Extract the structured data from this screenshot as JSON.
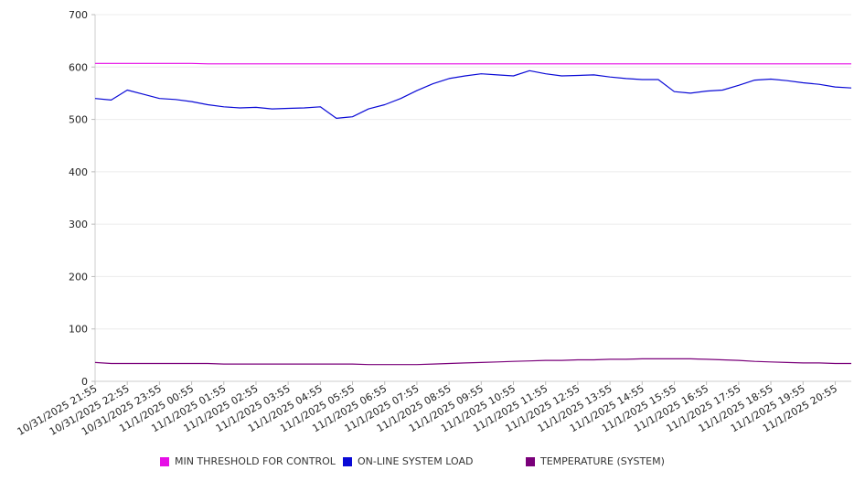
{
  "chart_data": {
    "type": "line",
    "title": "",
    "xlabel": "",
    "ylabel": "",
    "ylim": [
      0,
      700
    ],
    "yticks": [
      0,
      100,
      200,
      300,
      400,
      500,
      600,
      700
    ],
    "grid": true,
    "legend_position": "bottom",
    "xtick_labels": [
      "10/31/2025 21:55",
      "10/31/2025 22:55",
      "10/31/2025 23:55",
      "11/1/2025 00:55",
      "11/1/2025 01:55",
      "11/1/2025 02:55",
      "11/1/2025 03:55",
      "11/1/2025 04:55",
      "11/1/2025 05:55",
      "11/1/2025 06:55",
      "11/1/2025 07:55",
      "11/1/2025 08:55",
      "11/1/2025 09:55",
      "11/1/2025 10:55",
      "11/1/2025 11:55",
      "11/1/2025 12:55",
      "11/1/2025 13:55",
      "11/1/2025 14:55",
      "11/1/2025 15:55",
      "11/1/2025 16:55",
      "11/1/2025 17:55",
      "11/1/2025 18:55",
      "11/1/2025 19:55",
      "11/1/2025 20:55"
    ],
    "x_points": [
      "10/31/2025 21:55",
      "10/31/2025 22:25",
      "10/31/2025 22:55",
      "10/31/2025 23:25",
      "10/31/2025 23:55",
      "11/1/2025 00:25",
      "11/1/2025 00:55",
      "11/1/2025 01:25",
      "11/1/2025 01:55",
      "11/1/2025 02:25",
      "11/1/2025 02:55",
      "11/1/2025 03:25",
      "11/1/2025 03:55",
      "11/1/2025 04:25",
      "11/1/2025 04:55",
      "11/1/2025 05:25",
      "11/1/2025 05:55",
      "11/1/2025 06:25",
      "11/1/2025 06:55",
      "11/1/2025 07:25",
      "11/1/2025 07:55",
      "11/1/2025 08:25",
      "11/1/2025 08:55",
      "11/1/2025 09:25",
      "11/1/2025 09:55",
      "11/1/2025 10:25",
      "11/1/2025 10:55",
      "11/1/2025 11:25",
      "11/1/2025 11:55",
      "11/1/2025 12:25",
      "11/1/2025 12:55",
      "11/1/2025 13:25",
      "11/1/2025 13:55",
      "11/1/2025 14:25",
      "11/1/2025 14:55",
      "11/1/2025 15:25",
      "11/1/2025 15:55",
      "11/1/2025 16:25",
      "11/1/2025 16:55",
      "11/1/2025 17:25",
      "11/1/2025 17:55",
      "11/1/2025 18:25",
      "11/1/2025 18:55",
      "11/1/2025 19:25",
      "11/1/2025 19:55",
      "11/1/2025 20:25",
      "11/1/2025 20:55",
      "11/1/2025 21:25"
    ],
    "series": [
      {
        "name": "MIN THRESHOLD FOR CONTROL",
        "color": "#e60fe6",
        "values": [
          607,
          607,
          607,
          607,
          607,
          607,
          607,
          606,
          606,
          606,
          606,
          606,
          606,
          606,
          606,
          606,
          606,
          606,
          606,
          606,
          606,
          606,
          606,
          606,
          606,
          606,
          606,
          606,
          606,
          606,
          606,
          606,
          606,
          606,
          606,
          606,
          606,
          606,
          606,
          606,
          606,
          606,
          606,
          606,
          606,
          606,
          606,
          606
        ]
      },
      {
        "name": "ON-LINE SYSTEM LOAD",
        "color": "#0a0ad6",
        "values": [
          540,
          537,
          556,
          548,
          540,
          538,
          534,
          528,
          524,
          522,
          523,
          520,
          521,
          522,
          524,
          502,
          505,
          520,
          528,
          540,
          555,
          568,
          578,
          583,
          587,
          585,
          583,
          593,
          587,
          583,
          584,
          585,
          581,
          578,
          576,
          576,
          553,
          550,
          554,
          556,
          565,
          575,
          577,
          574,
          570,
          567,
          562,
          560
        ]
      },
      {
        "name": "TEMPERATURE (SYSTEM)",
        "color": "#7a007a",
        "values": [
          36,
          34,
          34,
          34,
          34,
          34,
          34,
          34,
          33,
          33,
          33,
          33,
          33,
          33,
          33,
          33,
          33,
          32,
          32,
          32,
          32,
          33,
          34,
          35,
          36,
          37,
          38,
          39,
          40,
          40,
          41,
          41,
          42,
          42,
          43,
          43,
          43,
          43,
          42,
          41,
          40,
          38,
          37,
          36,
          35,
          35,
          34,
          34
        ]
      }
    ]
  }
}
